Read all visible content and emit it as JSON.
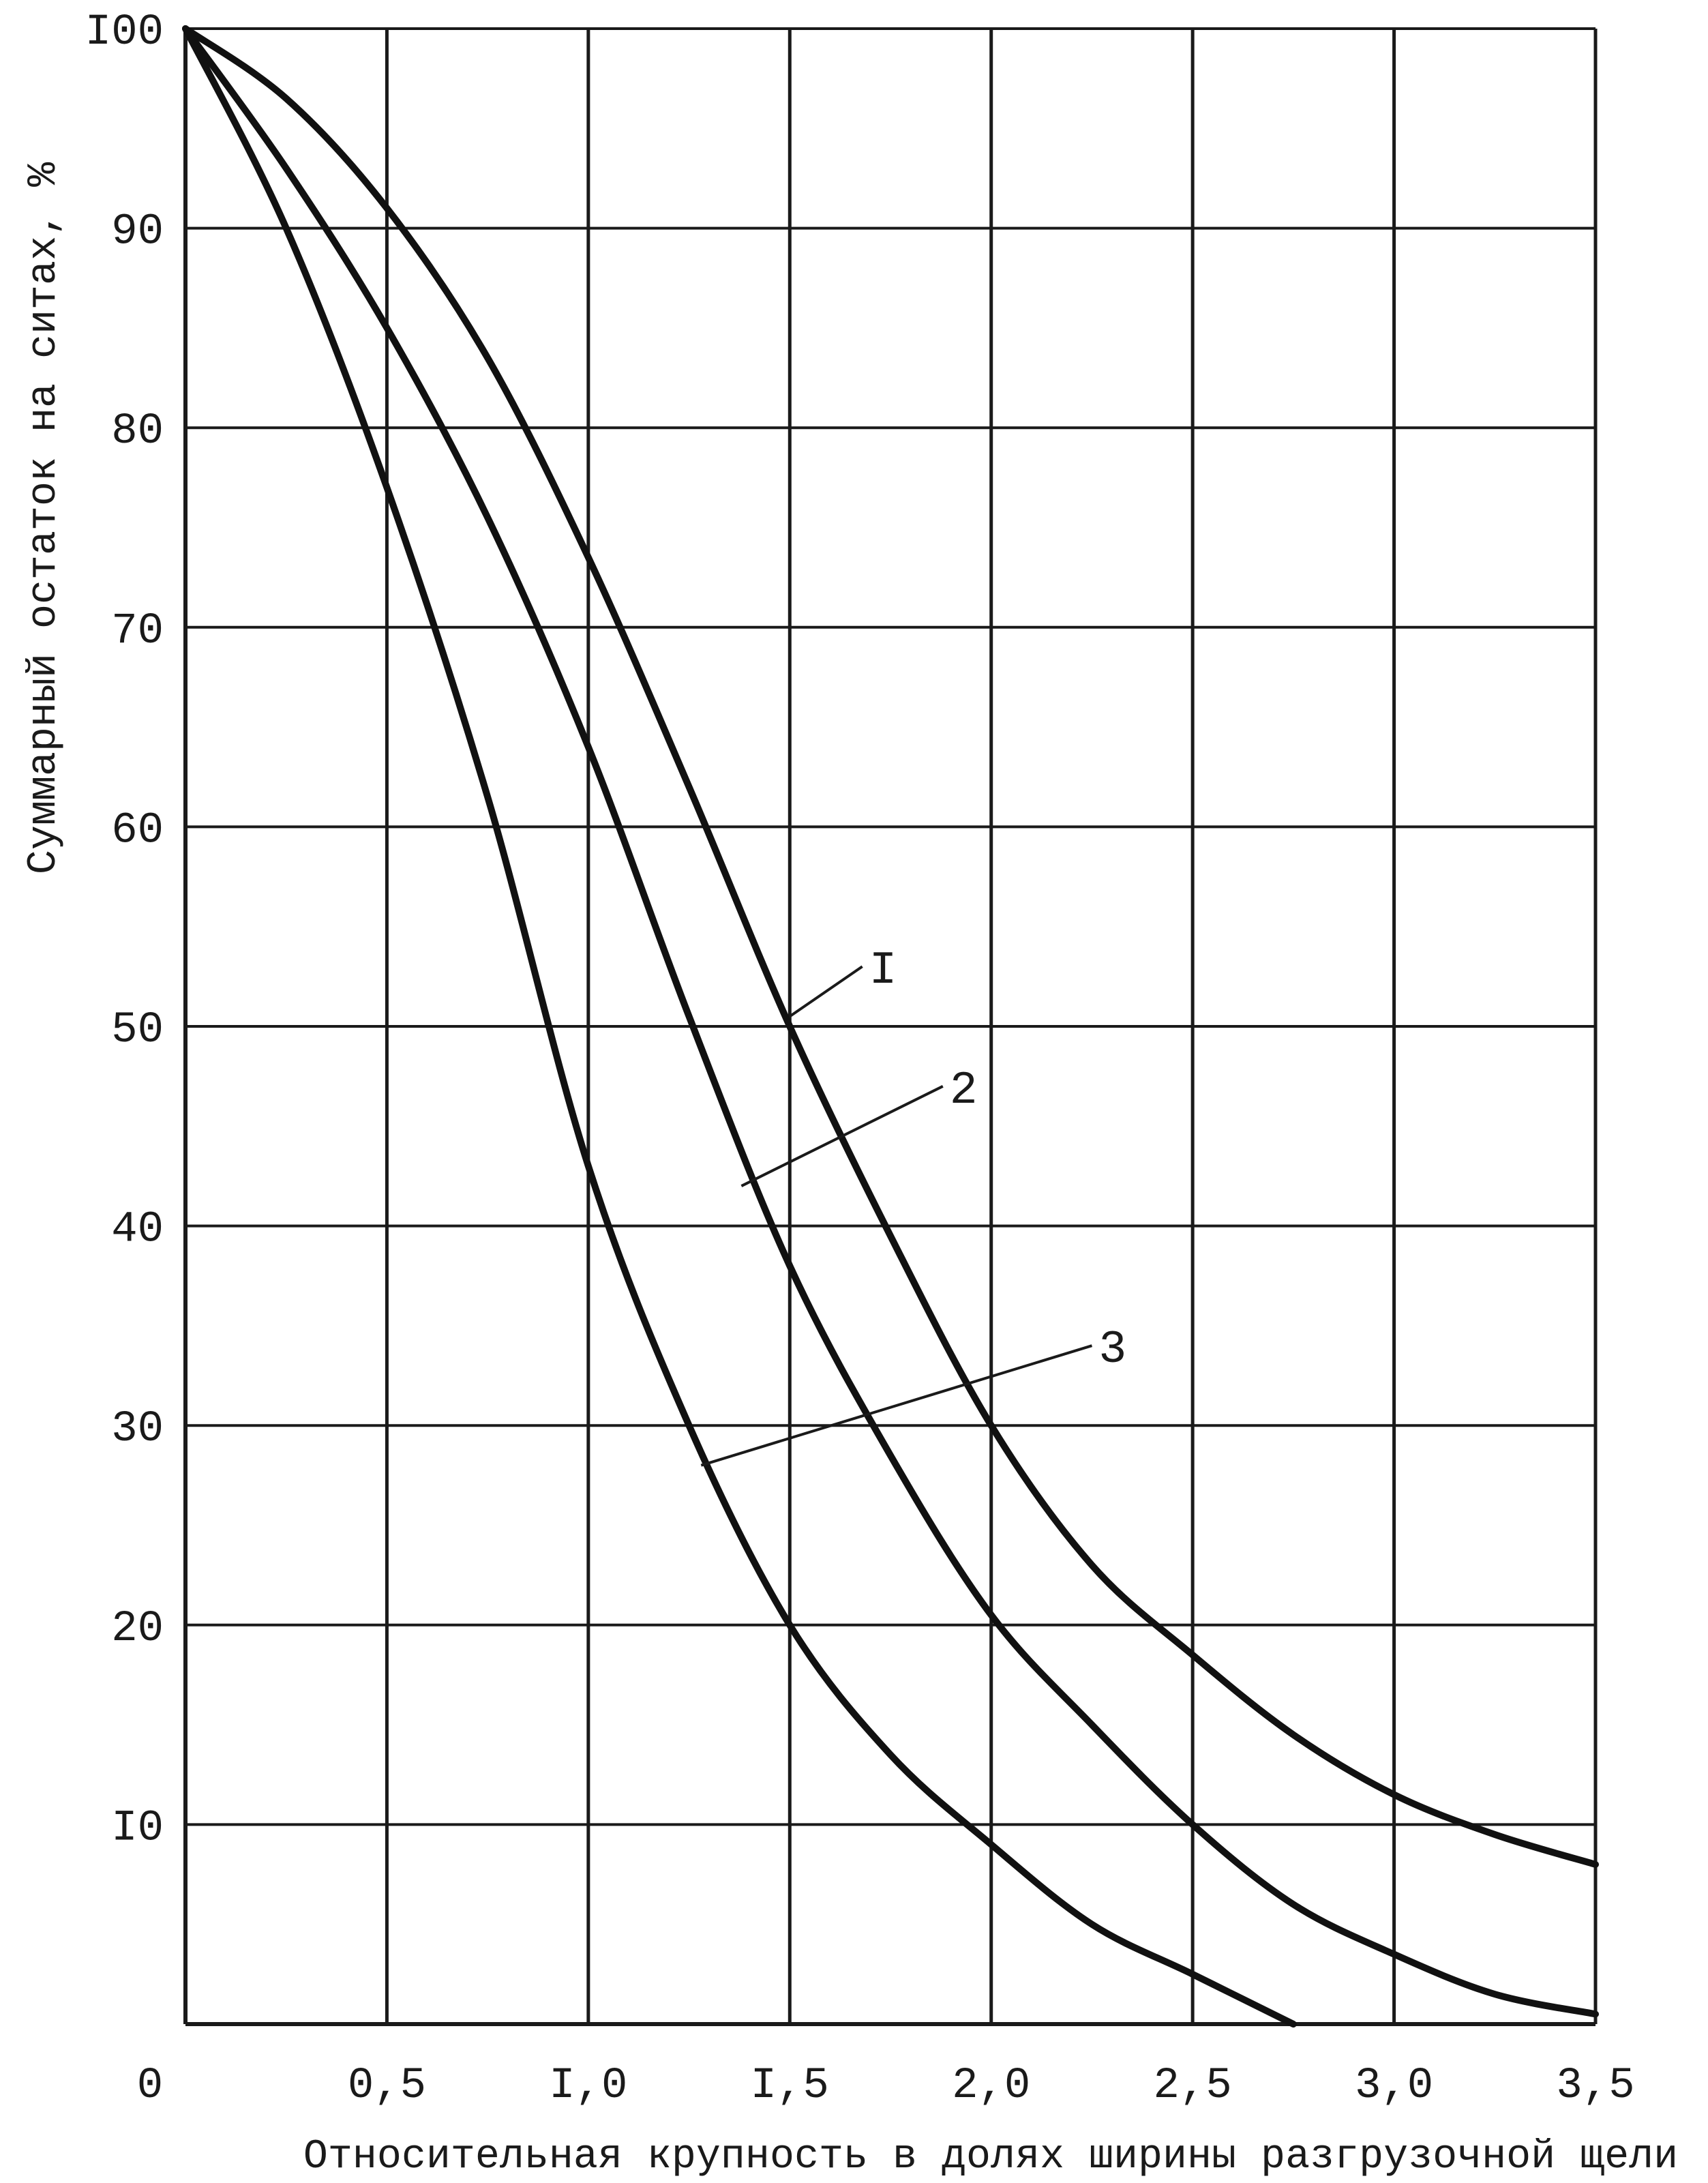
{
  "chart_data": {
    "type": "line",
    "title": "",
    "xlabel": "Относительная крупность в долях ширины разгрузочной щели",
    "ylabel": "Суммарный остаток на ситах, %",
    "xlim": [
      0,
      3.5
    ],
    "ylim": [
      0,
      100
    ],
    "grid": true,
    "origin_label": "0",
    "x_ticks": [
      {
        "value": 0.5,
        "label": "0,5"
      },
      {
        "value": 1.0,
        "label": "I,0"
      },
      {
        "value": 1.5,
        "label": "I,5"
      },
      {
        "value": 2.0,
        "label": "2,0"
      },
      {
        "value": 2.5,
        "label": "2,5"
      },
      {
        "value": 3.0,
        "label": "3,0"
      },
      {
        "value": 3.5,
        "label": "3,5"
      }
    ],
    "y_ticks": [
      {
        "value": 10,
        "label": "I0"
      },
      {
        "value": 20,
        "label": "20"
      },
      {
        "value": 30,
        "label": "30"
      },
      {
        "value": 40,
        "label": "40"
      },
      {
        "value": 50,
        "label": "50"
      },
      {
        "value": 60,
        "label": "60"
      },
      {
        "value": 70,
        "label": "70"
      },
      {
        "value": 80,
        "label": "80"
      },
      {
        "value": 90,
        "label": "90"
      },
      {
        "value": 100,
        "label": "I00"
      }
    ],
    "series": [
      {
        "name": "I",
        "x": [
          0,
          0.25,
          0.5,
          0.75,
          1.0,
          1.25,
          1.5,
          1.75,
          2.0,
          2.25,
          2.5,
          2.75,
          3.0,
          3.25,
          3.5
        ],
        "y": [
          100,
          96.5,
          91,
          83.5,
          73.5,
          62,
          50,
          39.5,
          30,
          23,
          18.5,
          14.5,
          11.5,
          9.5,
          8
        ]
      },
      {
        "name": "2",
        "x": [
          0,
          0.25,
          0.5,
          0.75,
          1.0,
          1.25,
          1.5,
          1.75,
          2.0,
          2.25,
          2.5,
          2.75,
          3.0,
          3.25,
          3.5
        ],
        "y": [
          100,
          93,
          85,
          75.5,
          64,
          50.5,
          38,
          28.5,
          20.5,
          15,
          10,
          6,
          3.5,
          1.5,
          0.5
        ]
      },
      {
        "name": "3",
        "x": [
          0,
          0.25,
          0.5,
          0.75,
          1.0,
          1.25,
          1.5,
          1.75,
          2.0,
          2.25,
          2.5,
          2.75
        ],
        "y": [
          100,
          90,
          77,
          61.5,
          43,
          30,
          20,
          13.5,
          9,
          5,
          2.5,
          0
        ]
      }
    ],
    "annotations": [
      {
        "label": "I",
        "series": "I",
        "x": 1.5,
        "y": 50.5,
        "text_x": 1.68,
        "text_y": 53
      },
      {
        "label": "2",
        "series": "2",
        "x": 1.38,
        "y": 42,
        "text_x": 1.88,
        "text_y": 47
      },
      {
        "label": "3",
        "series": "3",
        "x": 1.28,
        "y": 28,
        "text_x": 2.25,
        "text_y": 34
      }
    ]
  }
}
